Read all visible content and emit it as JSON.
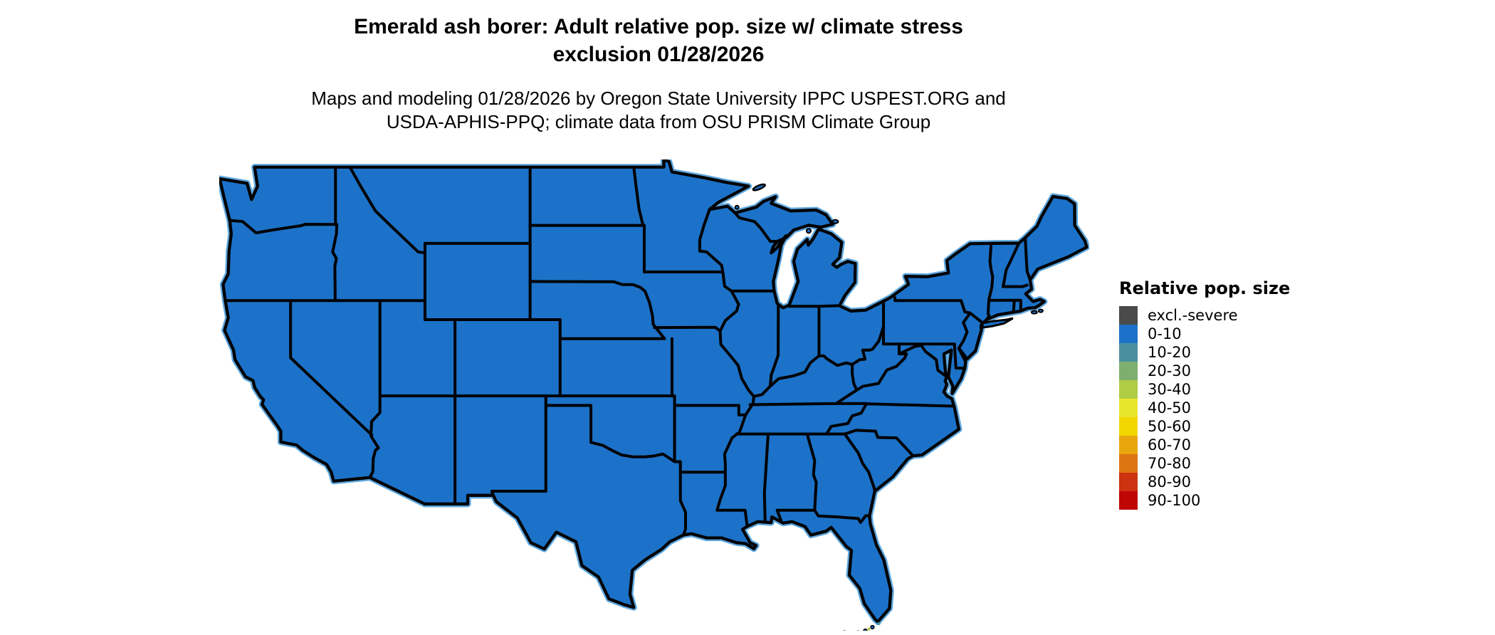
{
  "header": {
    "title_lines": [
      "Emerald ash borer: Adult relative pop. size w/ climate stress",
      "exclusion 01/28/2026"
    ],
    "subtitle_lines": [
      "Maps and modeling 01/28/2026 by Oregon State University IPPC USPEST.ORG and",
      "USDA-APHIS-PPQ; climate data from OSU PRISM Climate Group"
    ]
  },
  "legend": {
    "title": "Relative pop. size",
    "items": [
      {
        "label": "excl.-severe",
        "color": "#4A4A4A"
      },
      {
        "label": "0-10",
        "color": "#1C72C8"
      },
      {
        "label": "10-20",
        "color": "#4A8FA0"
      },
      {
        "label": "20-30",
        "color": "#7EAF6E"
      },
      {
        "label": "30-40",
        "color": "#AFCC44"
      },
      {
        "label": "40-50",
        "color": "#E9E52F"
      },
      {
        "label": "50-60",
        "color": "#F2D800"
      },
      {
        "label": "60-70",
        "color": "#E8A70C"
      },
      {
        "label": "70-80",
        "color": "#DD7612"
      },
      {
        "label": "80-90",
        "color": "#CE3311"
      },
      {
        "label": "90-100",
        "color": "#C00505"
      }
    ]
  },
  "map": {
    "region": "Contiguous United States choropleth",
    "land_fill_color": "#1C72C8",
    "border_color": "#000000",
    "coastal_halo_color": "#5FA8E0",
    "background_color": "#FFFFFF",
    "dominant_class": "0-10",
    "keys_speck_colors": [
      "#4A8FA0",
      "#AFCC44"
    ]
  },
  "chart_data": {
    "type": "heatmap",
    "title": "Emerald ash borer: Adult relative pop. size w/ climate stress exclusion 01/28/2026",
    "legend_title": "Relative pop. size",
    "classes": [
      "excl.-severe",
      "0-10",
      "10-20",
      "20-30",
      "30-40",
      "40-50",
      "50-60",
      "60-70",
      "70-80",
      "80-90",
      "90-100"
    ],
    "class_colors": [
      "#4A4A4A",
      "#1C72C8",
      "#4A8FA0",
      "#7EAF6E",
      "#AFCC44",
      "#E9E52F",
      "#F2D800",
      "#E8A70C",
      "#DD7612",
      "#CE3311",
      "#C00505"
    ],
    "observed_values": "Entire contiguous US shown in the 0-10 class; only a few pixels near the Florida Keys show 10-20 and 30-40"
  }
}
